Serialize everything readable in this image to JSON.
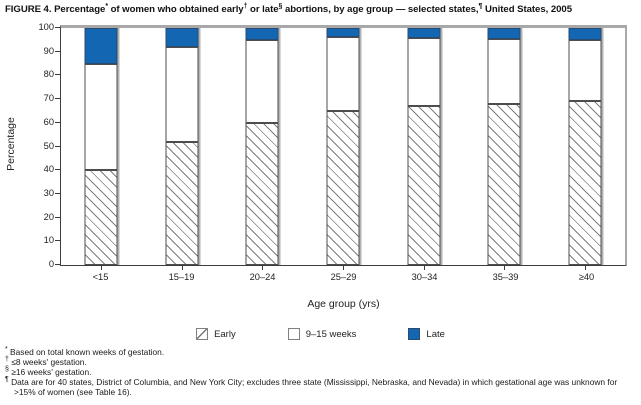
{
  "figure": {
    "title_parts": [
      {
        "t": "FIGURE 4. Percentage"
      },
      {
        "t": "*",
        "sup": true
      },
      {
        "t": " of women who obtained early"
      },
      {
        "t": "†",
        "sup": true
      },
      {
        "t": " or late"
      },
      {
        "t": "§",
        "sup": true
      },
      {
        "t": " abortions, by age group — selected states,"
      },
      {
        "t": "¶",
        "sup": true
      },
      {
        "t": " United States, 2005"
      }
    ]
  },
  "chart_data": {
    "type": "bar",
    "stacked": true,
    "title": "FIGURE 4. Percentage* of women who obtained early† or late§ abortions, by age group — selected states,¶ United States, 2005",
    "categories": [
      "<15",
      "15–19",
      "20–24",
      "25–29",
      "30–34",
      "35–39",
      "≥40"
    ],
    "series": [
      {
        "name": "Early",
        "style": "hatched",
        "values": [
          40,
          52,
          60,
          65,
          67,
          68,
          69
        ]
      },
      {
        "name": "9–15 weeks",
        "style": "white",
        "values": [
          45,
          40,
          35,
          31,
          29,
          27.5,
          26
        ]
      },
      {
        "name": "Late",
        "style": "blue",
        "values": [
          15,
          8,
          5,
          4,
          4,
          4.5,
          5
        ]
      }
    ],
    "xlabel": "Age group (yrs)",
    "ylabel": "Percentage",
    "ylim": [
      0,
      100
    ],
    "yticks": [
      0,
      10,
      20,
      30,
      40,
      50,
      60,
      70,
      80,
      90,
      100
    ],
    "grid": false,
    "legend_position": "bottom"
  },
  "legend": {
    "items": [
      {
        "label": "Early",
        "swatch": "hatched"
      },
      {
        "label": "9–15 weeks",
        "swatch": "white"
      },
      {
        "label": "Late",
        "swatch": "blue"
      }
    ]
  },
  "footnotes": [
    {
      "marker": "*",
      "text": "Based on total known weeks of gestation."
    },
    {
      "marker": "†",
      "text": "≤8 weeks' gestation."
    },
    {
      "marker": "§",
      "text": "≥16 weeks' gestation."
    },
    {
      "marker": "¶",
      "text": "Data are for 40 states, District of Columbia, and New York City; excludes three state (Mississippi, Nebraska, and Nevada) in which gestational age was unknown for >15% of women (see Table 16)."
    }
  ],
  "colors": {
    "late_blue": "#1266B2",
    "hatch_line": "#7e7e7e",
    "segment_border": "#4d4d4d",
    "axis": "#3c3c3c",
    "frame": "#a8a8a8",
    "bar_shadow": "#b3b3b3"
  }
}
